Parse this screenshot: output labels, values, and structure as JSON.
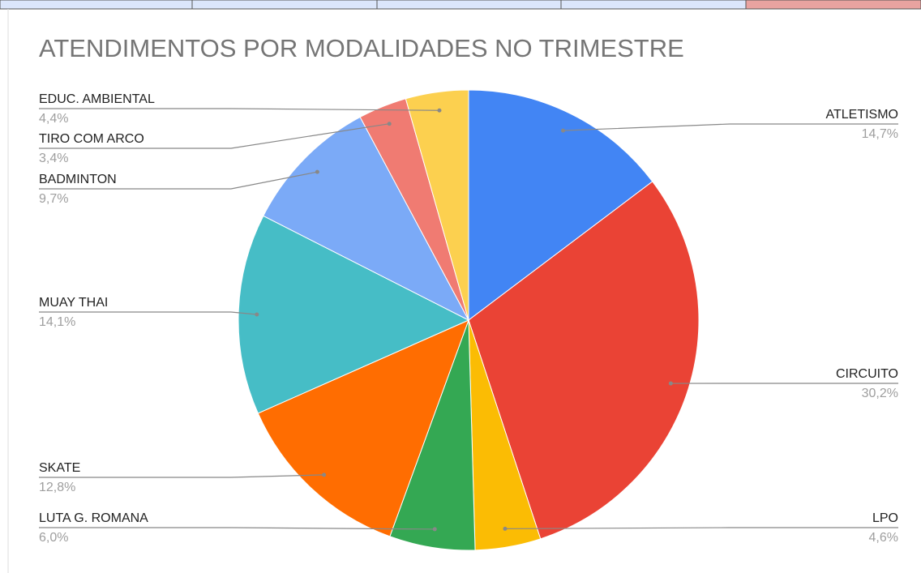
{
  "chart_data": {
    "type": "pie",
    "title": "ATENDIMENTOS POR MODALIDADES NO TRIMESTRE",
    "categories": [
      "ATLETISMO",
      "CIRCUITO",
      "LPO",
      "LUTA G. ROMANA",
      "SKATE",
      "MUAY THAI",
      "BADMINTON",
      "TIRO COM ARCO",
      "EDUC. AMBIENTAL"
    ],
    "values": [
      14.7,
      30.2,
      4.6,
      6.0,
      12.8,
      14.1,
      9.7,
      3.4,
      4.4
    ],
    "value_labels": [
      "14,7%",
      "30,2%",
      "4,6%",
      "6,0%",
      "12,8%",
      "14,1%",
      "9,7%",
      "3,4%",
      "4,4%"
    ],
    "colors": [
      "#4285f4",
      "#ea4335",
      "#fbbc04",
      "#34a853",
      "#ff6d01",
      "#46bdc6",
      "#7baaf7",
      "#f07b72",
      "#fcd04f"
    ]
  }
}
